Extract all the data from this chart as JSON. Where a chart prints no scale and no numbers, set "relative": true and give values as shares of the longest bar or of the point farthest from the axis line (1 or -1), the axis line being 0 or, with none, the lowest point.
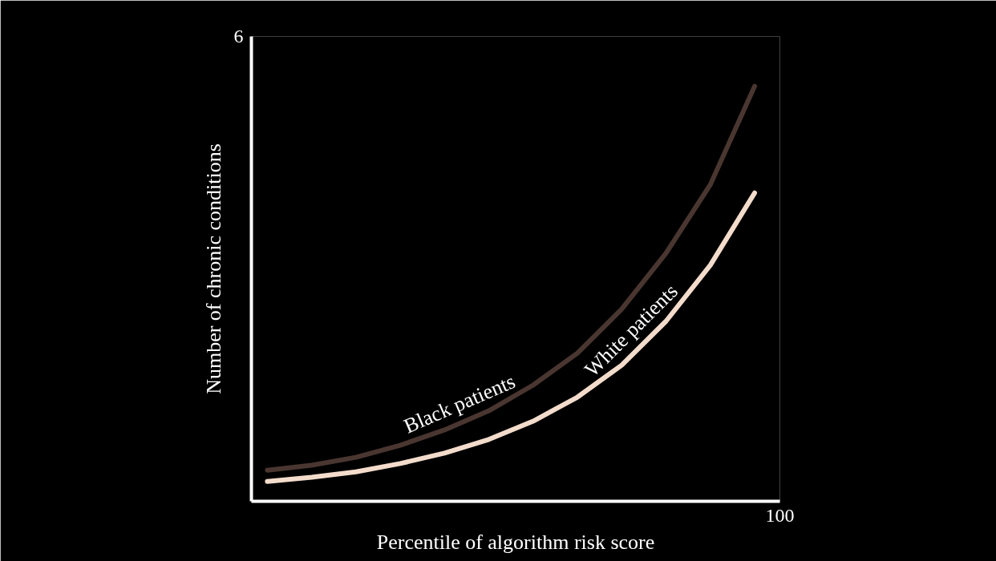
{
  "chart_data": {
    "type": "line",
    "relative": true,
    "xlabel": "Percentile of algorithm risk score",
    "ylabel": "Number of chronic conditions",
    "annotations": [
      "6",
      "100"
    ],
    "marker": "none",
    "line_style": "solid",
    "categories": [
      null,
      null,
      null,
      null,
      null,
      null,
      null,
      null,
      null,
      null,
      null,
      null
    ],
    "series": [
      {
        "name": "Black patients",
        "color": "#4a3630",
        "values": [
          0.075,
          0.087,
          0.106,
          0.135,
          0.172,
          0.218,
          0.28,
          0.357,
          0.463,
          0.598,
          0.763,
          1
        ]
      },
      {
        "name": "White patients",
        "color": "#f3dccb",
        "values": [
          0.048,
          0.058,
          0.071,
          0.091,
          0.116,
          0.149,
          0.193,
          0.251,
          0.328,
          0.434,
          0.569,
          0.743
        ]
      }
    ]
  }
}
